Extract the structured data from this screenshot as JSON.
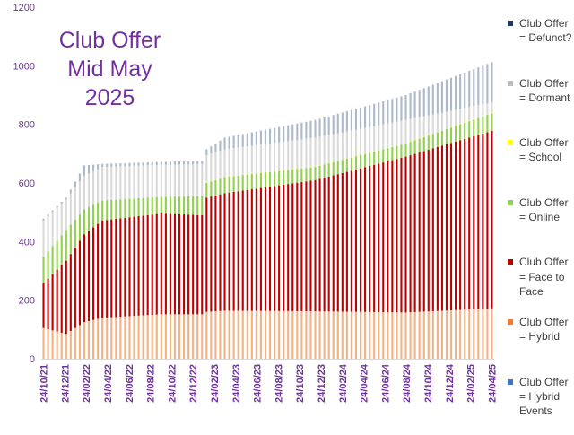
{
  "chart_data": {
    "type": "bar",
    "stacked": true,
    "title_lines": [
      "Club Offer",
      "Mid May",
      "2025"
    ],
    "ylim": [
      0,
      1200
    ],
    "yticks": [
      0,
      200,
      400,
      600,
      800,
      1000,
      1200
    ],
    "grid": false,
    "legend_position": "right",
    "x_tick_labels": [
      "24/10/21",
      "24/12/21",
      "24/02/22",
      "24/04/22",
      "24/06/22",
      "24/08/22",
      "24/10/22",
      "24/12/22",
      "24/02/23",
      "24/04/23",
      "24/06/23",
      "24/08/23",
      "24/10/23",
      "24/12/23",
      "24/02/24",
      "24/04/24",
      "24/06/24",
      "24/08/24",
      "24/10/24",
      "24/12/24",
      "24/02/25",
      "24/04/25"
    ],
    "series": [
      {
        "name": "Club Offer = Hybrid Events",
        "color": "#4472c4"
      },
      {
        "name": "Club Offer = Hybrid",
        "color": "#f4b183"
      },
      {
        "name": "Club Offer = Face to Face",
        "color": "#c00000"
      },
      {
        "name": "Club Offer = Online",
        "color": "#92d050"
      },
      {
        "name": "Club Offer = School",
        "color": "#ffff00"
      },
      {
        "name": "Club Offer = Dormant",
        "color": "#d9d9d9"
      },
      {
        "name": "Club Offer = Defunct?",
        "color": "#adb9ca"
      }
    ],
    "legend_order": [
      {
        "label": "Club Offer = Defunct?",
        "color": "#203864"
      },
      {
        "label": "Club Offer = Dormant",
        "color": "#bfbfbf"
      },
      {
        "label": "Club Offer = School",
        "color": "#ffff00"
      },
      {
        "label": "Club Offer = Online",
        "color": "#92d050"
      },
      {
        "label": "Club Offer = Face to Face",
        "color": "#c00000"
      },
      {
        "label": "Club Offer = Hybrid",
        "color": "#ed7d31"
      },
      {
        "label": "Club Offer = Hybrid Events",
        "color": "#4472c4"
      }
    ],
    "keypoints": {
      "index": [
        0,
        5,
        9,
        13,
        26,
        35,
        36,
        40,
        60,
        80,
        99
      ],
      "hybrid": [
        105,
        85,
        125,
        140,
        152,
        152,
        160,
        164,
        162,
        158,
        172
      ],
      "face_to_face_top": [
        258,
        335,
        425,
        472,
        496,
        490,
        550,
        565,
        610,
        690,
        778
      ],
      "online_top": [
        348,
        440,
        510,
        540,
        553,
        555,
        600,
        620,
        655,
        735,
        838
      ],
      "school_top": [
        348,
        440,
        510,
        540,
        553,
        555,
        601,
        621,
        656,
        736,
        840
      ],
      "dormant_top": [
        472,
        545,
        625,
        655,
        662,
        665,
        695,
        715,
        755,
        815,
        875
      ],
      "defunct_top": [
        478,
        550,
        660,
        665,
        672,
        675,
        715,
        755,
        815,
        900,
        1012
      ]
    }
  }
}
